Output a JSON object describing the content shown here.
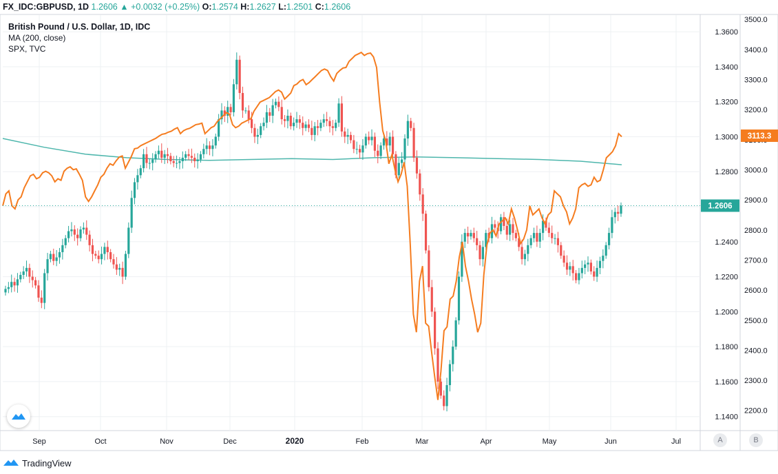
{
  "header": {
    "symbol": "FX_IDC:GBPUSD, 1D",
    "last": "1.2606",
    "arrow": "▲",
    "change": "+0.0032 (+0.25%)",
    "o_label": "O:",
    "o_value": "1.2574",
    "h_label": "H:",
    "h_value": "1.2627",
    "l_label": "L:",
    "l_value": "1.2501",
    "c_label": "C:",
    "c_value": "1.2606"
  },
  "legend": {
    "title": "British Pound / U.S. Dollar, 1D, IDC",
    "ma": "MA (200, close)",
    "spx": "SPX, TVC"
  },
  "footer": {
    "brand": "TradingView"
  },
  "buttons": {
    "a": "A",
    "b": "B"
  },
  "colors": {
    "up": "#26a69a",
    "down": "#ef5350",
    "spx": "#f57c1f",
    "ma": "#4db6ac",
    "grid": "#eef0f3"
  },
  "chart_data": {
    "type": "line",
    "x_ticks": [
      "Sep",
      "Oct",
      "Nov",
      "Dec",
      "2020",
      "Feb",
      "Mar",
      "Apr",
      "May",
      "Jun",
      "Jul"
    ],
    "y_left_ticks": [
      "1.1400",
      "1.1600",
      "1.1800",
      "1.2000",
      "1.2200",
      "1.2400",
      "1.2600",
      "1.2800",
      "1.3000",
      "1.3200",
      "1.3400",
      "1.3600"
    ],
    "y_right_ticks": [
      "2200.0",
      "2300.0",
      "2400.0",
      "2500.0",
      "2600.0",
      "2700.0",
      "2800.0",
      "2900.0",
      "3000.0",
      "3100.0",
      "3200.0",
      "3300.0",
      "3400.0",
      "3500.0"
    ],
    "gbpusd_ylim": [
      1.132,
      1.3695
    ],
    "spx_ylim": [
      2133,
      3514
    ],
    "last_labels": {
      "gbpusd": "1.2606",
      "spx": "3113.3"
    },
    "series": [
      {
        "name": "British Pound / U.S. Dollar, 1D, IDC",
        "style": "candles",
        "close": [
          1.213,
          1.214,
          1.217,
          1.215,
          1.2185,
          1.221,
          1.223,
          1.225,
          1.22,
          1.218,
          1.215,
          1.208,
          1.205,
          1.222,
          1.23,
          1.233,
          1.229,
          1.231,
          1.234,
          1.238,
          1.242,
          1.246,
          1.247,
          1.244,
          1.242,
          1.247,
          1.248,
          1.244,
          1.238,
          1.233,
          1.232,
          1.23,
          1.233,
          1.237,
          1.234,
          1.23,
          1.227,
          1.224,
          1.225,
          1.22,
          1.233,
          1.248,
          1.265,
          1.274,
          1.278,
          1.282,
          1.29,
          1.285,
          1.285,
          1.287,
          1.29,
          1.292,
          1.288,
          1.29,
          1.289,
          1.286,
          1.285,
          1.285,
          1.286,
          1.288,
          1.29,
          1.289,
          1.288,
          1.286,
          1.287,
          1.29,
          1.293,
          1.295,
          1.293,
          1.295,
          1.3,
          1.31,
          1.315,
          1.312,
          1.317,
          1.314,
          1.33,
          1.344,
          1.325,
          1.315,
          1.315,
          1.31,
          1.305,
          1.3,
          1.301,
          1.306,
          1.308,
          1.314,
          1.312,
          1.318,
          1.32,
          1.317,
          1.31,
          1.309,
          1.312,
          1.306,
          1.308,
          1.31,
          1.308,
          1.305,
          1.307,
          1.305,
          1.301,
          1.306,
          1.305,
          1.308,
          1.31,
          1.309,
          1.306,
          1.305,
          1.308,
          1.319,
          1.303,
          1.3,
          1.301,
          1.298,
          1.293,
          1.293,
          1.291,
          1.295,
          1.3,
          1.298,
          1.3,
          1.292,
          1.289,
          1.295,
          1.299,
          1.295,
          1.3,
          1.29,
          1.278,
          1.285,
          1.287,
          1.299,
          1.309,
          1.305,
          1.288,
          1.279,
          1.267,
          1.256,
          1.235,
          1.214,
          1.2,
          1.179,
          1.16,
          1.152,
          1.146,
          1.158,
          1.17,
          1.18,
          1.195,
          1.22,
          1.24,
          1.245,
          1.243,
          1.245,
          1.242,
          1.238,
          1.23,
          1.237,
          1.245,
          1.242,
          1.25,
          1.248,
          1.246,
          1.254,
          1.249,
          1.244,
          1.25,
          1.245,
          1.242,
          1.237,
          1.23,
          1.233,
          1.238,
          1.242,
          1.245,
          1.24,
          1.245,
          1.252,
          1.248,
          1.245,
          1.242,
          1.242,
          1.238,
          1.232,
          1.228,
          1.224,
          1.226,
          1.222,
          1.218,
          1.222,
          1.225,
          1.227,
          1.228,
          1.223,
          1.22,
          1.225,
          1.229,
          1.232,
          1.238,
          1.245,
          1.254,
          1.257,
          1.256,
          1.2606
        ]
      },
      {
        "name": "MA (200, close)",
        "style": "line",
        "values": [
          1.299,
          1.294,
          1.29,
          1.288,
          1.287,
          1.2865,
          1.287,
          1.2875,
          1.287,
          1.288,
          1.2885,
          1.288,
          1.2875,
          1.287,
          1.286,
          1.284
        ]
      },
      {
        "name": "SPX, TVC",
        "style": "line",
        "values": [
          2880,
          2920,
          2930,
          2880,
          2870,
          2900,
          2910,
          2940,
          2960,
          2980,
          2985,
          2970,
          2975,
          2990,
          2995,
          2990,
          2980,
          2960,
          2970,
          2965,
          2995,
          3005,
          3010,
          3000,
          3003,
          2985,
          2965,
          2910,
          2895,
          2910,
          2930,
          2950,
          2975,
          2985,
          3005,
          3020,
          3015,
          3030,
          3042,
          3046,
          3005,
          3025,
          3045,
          3070,
          3072,
          3080,
          3085,
          3090,
          3095,
          3100,
          3105,
          3112,
          3118,
          3120,
          3125,
          3128,
          3135,
          3140,
          3120,
          3130,
          3135,
          3138,
          3144,
          3150,
          3152,
          3155,
          3120,
          3130,
          3140,
          3145,
          3160,
          3170,
          3180,
          3190,
          3185,
          3150,
          3140,
          3145,
          3155,
          3160,
          3165,
          3170,
          3195,
          3210,
          3225,
          3230,
          3235,
          3240,
          3250,
          3260,
          3265,
          3258,
          3235,
          3245,
          3255,
          3280,
          3285,
          3295,
          3300,
          3283,
          3290,
          3300,
          3310,
          3320,
          3330,
          3335,
          3330,
          3310,
          3295,
          3320,
          3330,
          3338,
          3340,
          3360,
          3370,
          3380,
          3385,
          3390,
          3380,
          3386,
          3388,
          3375,
          3340,
          3225,
          3130,
          3095,
          3020,
          3050,
          3000,
          2960,
          2985,
          3025,
          2945,
          2750,
          2520,
          2460,
          2630,
          2680,
          2490,
          2480,
          2390,
          2310,
          2235,
          2330,
          2465,
          2478,
          2570,
          2580,
          2630,
          2710,
          2760,
          2680,
          2630,
          2570,
          2520,
          2460,
          2490,
          2650,
          2750,
          2790,
          2800,
          2780,
          2820,
          2830,
          2840,
          2820,
          2870,
          2840,
          2800,
          2755,
          2770,
          2800,
          2880,
          2850,
          2860,
          2870,
          2840,
          2820,
          2850,
          2860,
          2930,
          2920,
          2910,
          2880,
          2860,
          2820,
          2840,
          2870,
          2940,
          2950,
          2955,
          2945,
          2950,
          2975,
          2960,
          2965,
          3000,
          3040,
          3050,
          3060,
          3080,
          3120,
          3110
        ]
      }
    ]
  }
}
